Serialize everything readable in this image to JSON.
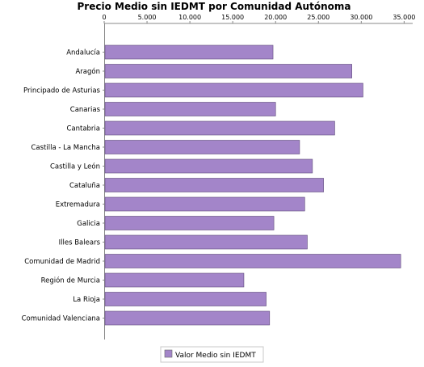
{
  "chart_data": {
    "type": "bar",
    "orientation": "horizontal",
    "title": "Precio Medio sin IEDMT por Comunidad Autónoma",
    "xlabel": "",
    "ylabel": "",
    "xlim": [
      0,
      36000
    ],
    "x_ticks": [
      0,
      5000,
      10000,
      15000,
      20000,
      25000,
      30000,
      35000
    ],
    "x_tick_labels": [
      "0",
      "5.000",
      "10.000",
      "15.000",
      "20.000",
      "25.000",
      "30.000",
      "35.000"
    ],
    "axis_position": "top",
    "grid": false,
    "legend_position": "bottom",
    "categories": [
      "Andalucía",
      "Aragón",
      "Principado de Asturias",
      "Canarias",
      "Cantabria",
      "Castilla - La Mancha",
      "Castilla y León",
      "Cataluña",
      "Extremadura",
      "Galicia",
      "Illes Balears",
      "Comunidad de Madrid",
      "Región de Murcia",
      "La Rioja",
      "Comunidad Valenciana"
    ],
    "series": [
      {
        "name": "Valor Medio sin IEDMT",
        "color": "#a385c9",
        "values": [
          19700,
          28900,
          30200,
          20000,
          26900,
          22800,
          24300,
          25600,
          23400,
          19800,
          23700,
          34600,
          16300,
          18900,
          19300
        ]
      }
    ]
  }
}
